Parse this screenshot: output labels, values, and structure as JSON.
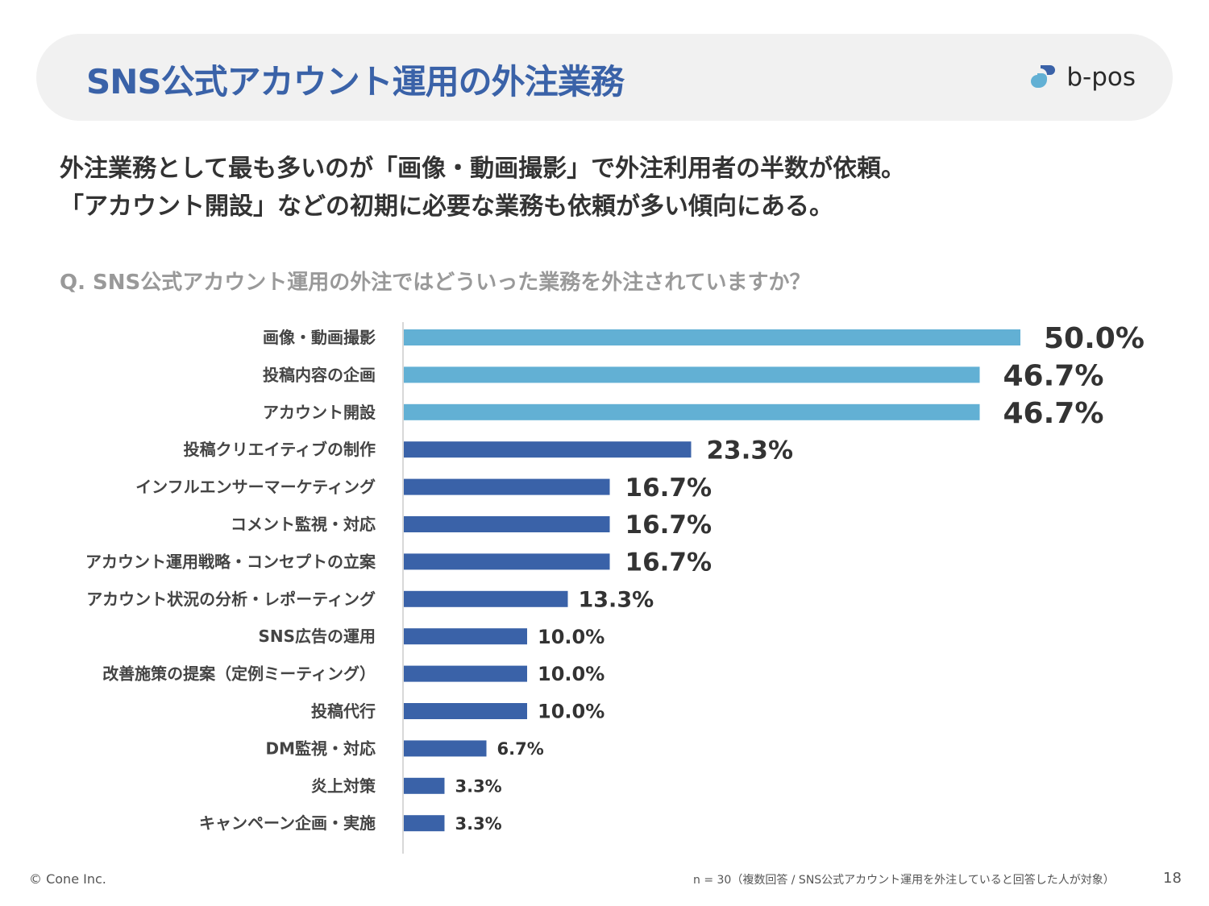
{
  "header": {
    "title": "SNS公式アカウント運用の外注業務",
    "logo_text": "b-pos"
  },
  "lead": {
    "line1": "外注業務として最も多いのが「画像・動画撮影」で外注利用者の半数が依頼。",
    "line2": "「アカウント開設」などの初期に必要な業務も依頼が多い傾向にある。"
  },
  "question": "Q. SNS公式アカウント運用の外注ではどういった業務を外注されていますか？",
  "colors": {
    "highlight": "#62b0d4",
    "default": "#3a62a8",
    "title": "#3a62a8"
  },
  "chart_data": {
    "type": "bar",
    "orientation": "horizontal",
    "categories": [
      "画像・動画撮影",
      "投稿内容の企画",
      "アカウント開設",
      "投稿クリエイティブの制作",
      "インフルエンサーマーケティング",
      "コメント監視・対応",
      "アカウント運用戦略・コンセプトの立案",
      "アカウント状況の分析・レポーティング",
      "SNS広告の運用",
      "改善施策の提案（定例ミーティング）",
      "投稿代行",
      "DM監視・対応",
      "炎上対策",
      "キャンペーン企画・実施"
    ],
    "values": [
      50.0,
      46.7,
      46.7,
      23.3,
      16.7,
      16.7,
      16.7,
      13.3,
      10.0,
      10.0,
      10.0,
      6.7,
      3.3,
      3.3
    ],
    "data_labels": [
      "50.0%",
      "46.7%",
      "46.7%",
      "23.3%",
      "16.7%",
      "16.7%",
      "16.7%",
      "13.3%",
      "10.0%",
      "10.0%",
      "10.0%",
      "6.7%",
      "3.3%",
      "3.3%"
    ],
    "highlighted": [
      true,
      true,
      true,
      false,
      false,
      false,
      false,
      false,
      false,
      false,
      false,
      false,
      false,
      false
    ],
    "unit": "%",
    "xlim": [
      0,
      50
    ],
    "grid": false,
    "legend": "none"
  },
  "footer": {
    "copyright": "© Cone Inc.",
    "note": "n = 30（複数回答 / SNS公式アカウント運用を外注していると回答した人が対象）",
    "page": "18"
  }
}
